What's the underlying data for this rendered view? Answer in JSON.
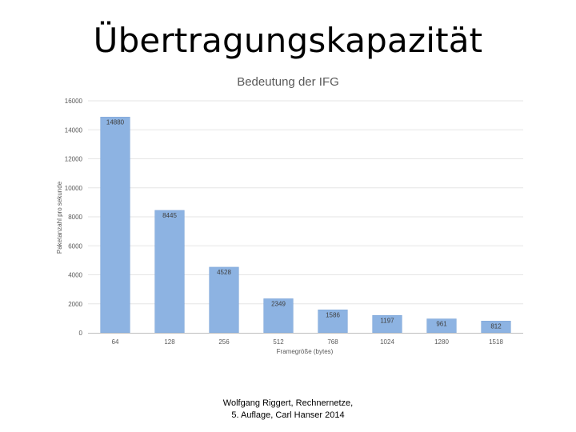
{
  "slide": {
    "title": "Übertragungskapazität",
    "citation_line1": "Wolfgang Riggert, Rechnernetze,",
    "citation_line2": "5. Auflage, Carl Hanser 2014"
  },
  "chart_data": {
    "type": "bar",
    "title": "",
    "subtitle": "Bedeutung der IFG",
    "xlabel": "Framegröße (bytes)",
    "ylabel": "Paketanzahl pro sekunde",
    "categories": [
      "64",
      "128",
      "256",
      "512",
      "768",
      "1024",
      "1280",
      "1518"
    ],
    "values": [
      14880,
      8445,
      4528,
      2349,
      1586,
      1197,
      961,
      812
    ],
    "data_labels": [
      "14880",
      "8445",
      "4528",
      "2349",
      "1586",
      "1197",
      "961",
      "812"
    ],
    "ylim": [
      0,
      16000
    ],
    "yticks": [
      0,
      2000,
      4000,
      6000,
      8000,
      10000,
      12000,
      14000,
      16000
    ],
    "grid": true,
    "legend": "none",
    "colors": {
      "bar": "#8db3e2",
      "bar_edge": "#7aa3d6",
      "grid": "#e5e5e5",
      "axis": "#bfbfbf"
    }
  }
}
